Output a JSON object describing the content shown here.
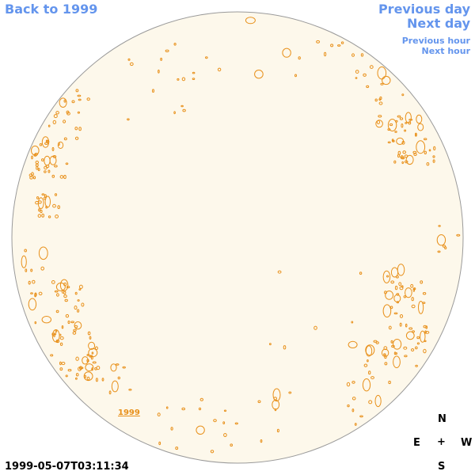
{
  "nav": {
    "back_label": "Back to 1999",
    "prev_day_label": "Previous day",
    "next_day_label": "Next day",
    "prev_hour_label": "Previous hour",
    "next_hour_label": "Next hour"
  },
  "map": {
    "year_label": "1999",
    "timestamp": "1999-05-07T03:11:34",
    "disk_fill": "#fdf8eb",
    "contour_color": "#e8901a"
  },
  "compass": {
    "n": "N",
    "e": "E",
    "center": "+",
    "w": "W",
    "s": "S"
  }
}
